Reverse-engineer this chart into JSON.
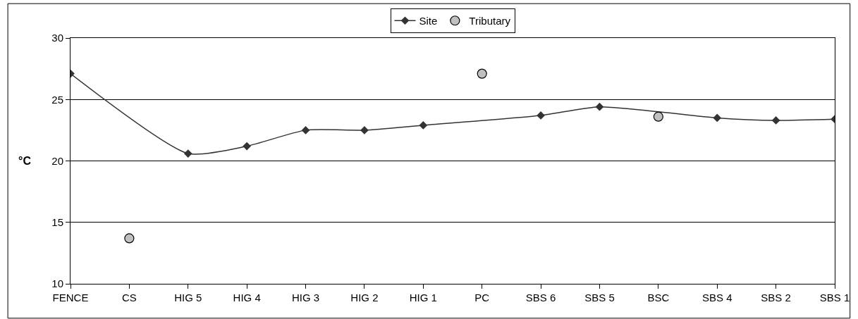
{
  "chart_data": {
    "type": "line",
    "ylabel": "°C",
    "categories": [
      "FENCE",
      "CS",
      "HIG 5",
      "HIG 4",
      "HIG 3",
      "HIG 2",
      "HIG 1",
      "PC",
      "SBS 6",
      "SBS 5",
      "BSC",
      "SBS 4",
      "SBS 2",
      "SBS 1"
    ],
    "series": [
      {
        "name": "Site",
        "color": "#333333",
        "marker": "diamond",
        "values": [
          27.1,
          null,
          20.6,
          21.2,
          22.5,
          22.5,
          22.9,
          null,
          23.7,
          24.4,
          null,
          23.5,
          23.3,
          23.4
        ]
      },
      {
        "name": "Tributary",
        "type": "scatter",
        "color": "#c0c0c0",
        "marker": "circle",
        "values": [
          null,
          13.7,
          null,
          null,
          null,
          null,
          null,
          27.1,
          null,
          null,
          23.6,
          null,
          null,
          null
        ]
      }
    ],
    "ylim": [
      10,
      30
    ],
    "yticks": [
      10,
      15,
      20,
      25,
      30
    ],
    "grid": "y",
    "legend": "top"
  }
}
